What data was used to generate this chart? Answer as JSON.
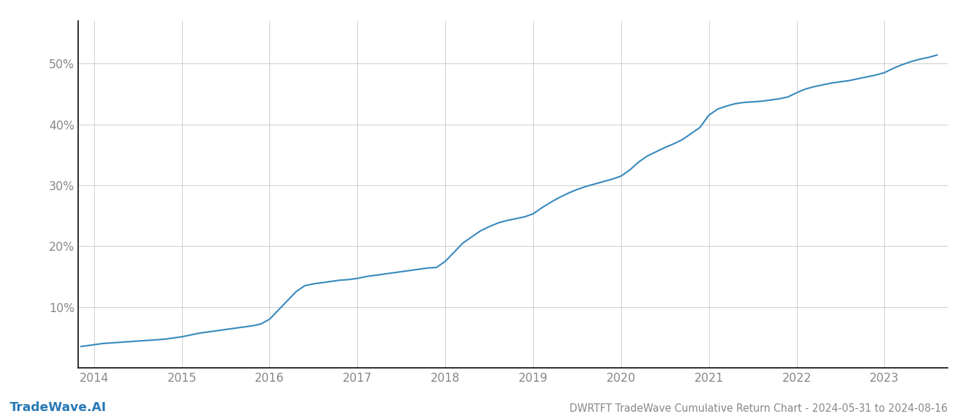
{
  "title": "DWRTFT TradeWave Cumulative Return Chart - 2024-05-31 to 2024-08-16",
  "watermark": "TradeWave.AI",
  "line_color": "#3a8bbf",
  "background_color": "#ffffff",
  "grid_color": "#cccccc",
  "x_years": [
    2014,
    2015,
    2016,
    2017,
    2018,
    2019,
    2020,
    2021,
    2022,
    2023
  ],
  "x_values": [
    2013.85,
    2014.0,
    2014.1,
    2014.2,
    2014.3,
    2014.4,
    2014.5,
    2014.6,
    2014.7,
    2014.8,
    2014.9,
    2015.0,
    2015.1,
    2015.2,
    2015.3,
    2015.4,
    2015.5,
    2015.6,
    2015.7,
    2015.8,
    2015.9,
    2016.0,
    2016.1,
    2016.2,
    2016.3,
    2016.4,
    2016.5,
    2016.6,
    2016.7,
    2016.8,
    2016.9,
    2017.0,
    2017.1,
    2017.2,
    2017.3,
    2017.4,
    2017.5,
    2017.6,
    2017.7,
    2017.8,
    2017.9,
    2018.0,
    2018.1,
    2018.2,
    2018.3,
    2018.4,
    2018.5,
    2018.6,
    2018.7,
    2018.8,
    2018.9,
    2019.0,
    2019.1,
    2019.2,
    2019.3,
    2019.4,
    2019.5,
    2019.6,
    2019.7,
    2019.8,
    2019.9,
    2020.0,
    2020.1,
    2020.2,
    2020.3,
    2020.4,
    2020.5,
    2020.6,
    2020.7,
    2020.8,
    2020.9,
    2021.0,
    2021.1,
    2021.2,
    2021.3,
    2021.4,
    2021.5,
    2021.6,
    2021.7,
    2021.8,
    2021.9,
    2022.0,
    2022.1,
    2022.2,
    2022.3,
    2022.4,
    2022.5,
    2022.6,
    2022.7,
    2022.8,
    2022.9,
    2023.0,
    2023.1,
    2023.2,
    2023.3,
    2023.4,
    2023.5,
    2023.6
  ],
  "y_values": [
    3.5,
    3.8,
    4.0,
    4.1,
    4.2,
    4.3,
    4.4,
    4.5,
    4.6,
    4.7,
    4.9,
    5.1,
    5.4,
    5.7,
    5.9,
    6.1,
    6.3,
    6.5,
    6.7,
    6.9,
    7.2,
    8.0,
    9.5,
    11.0,
    12.5,
    13.5,
    13.8,
    14.0,
    14.2,
    14.4,
    14.5,
    14.7,
    15.0,
    15.2,
    15.4,
    15.6,
    15.8,
    16.0,
    16.2,
    16.4,
    16.5,
    17.5,
    19.0,
    20.5,
    21.5,
    22.5,
    23.2,
    23.8,
    24.2,
    24.5,
    24.8,
    25.3,
    26.3,
    27.2,
    28.0,
    28.7,
    29.3,
    29.8,
    30.2,
    30.6,
    31.0,
    31.5,
    32.5,
    33.8,
    34.8,
    35.5,
    36.2,
    36.8,
    37.5,
    38.5,
    39.5,
    41.5,
    42.5,
    43.0,
    43.4,
    43.6,
    43.7,
    43.8,
    44.0,
    44.2,
    44.5,
    45.2,
    45.8,
    46.2,
    46.5,
    46.8,
    47.0,
    47.2,
    47.5,
    47.8,
    48.1,
    48.5,
    49.2,
    49.8,
    50.3,
    50.7,
    51.0,
    51.4
  ],
  "yticks": [
    10,
    20,
    30,
    40,
    50
  ],
  "ylim": [
    0,
    57
  ],
  "xlim": [
    2013.82,
    2023.72
  ],
  "title_fontsize": 10.5,
  "tick_fontsize": 12,
  "watermark_fontsize": 13,
  "line_width": 1.6
}
